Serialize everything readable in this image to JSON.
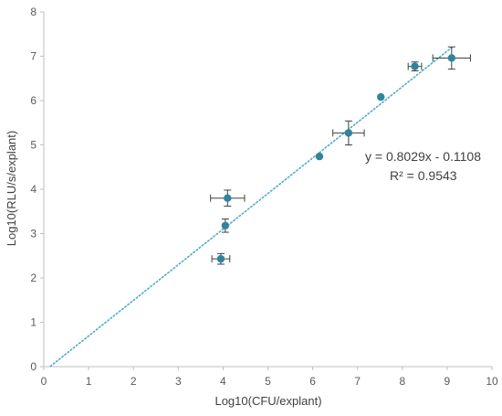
{
  "chart_data": {
    "type": "scatter",
    "title": "",
    "xlabel": "Log10(CFU/explant)",
    "ylabel": "Log10(RLU/s/explant)",
    "xlim": [
      0,
      10
    ],
    "ylim": [
      0,
      8
    ],
    "x_ticks": [
      "0",
      "1",
      "2",
      "3",
      "4",
      "5",
      "6",
      "7",
      "8",
      "9",
      "10"
    ],
    "y_ticks": [
      "0",
      "1",
      "2",
      "3",
      "4",
      "5",
      "6",
      "7",
      "8"
    ],
    "grid": false,
    "legend": "none",
    "marker_color": "#31849B",
    "trendline_color": "#4BACC6",
    "errorbar_color": "#404040",
    "points": [
      {
        "x": 3.95,
        "y": 2.43,
        "xerr": 0.2,
        "yerr": 0.12
      },
      {
        "x": 4.05,
        "y": 3.18,
        "xerr": 0,
        "yerr": 0.15
      },
      {
        "x": 4.1,
        "y": 3.8,
        "xerr": 0.38,
        "yerr": 0.18
      },
      {
        "x": 6.15,
        "y": 4.74,
        "xerr": 0,
        "yerr": 0
      },
      {
        "x": 6.8,
        "y": 5.27,
        "xerr": 0.35,
        "yerr": 0.27
      },
      {
        "x": 7.52,
        "y": 6.08,
        "xerr": 0,
        "yerr": 0
      },
      {
        "x": 8.28,
        "y": 6.77,
        "xerr": 0.15,
        "yerr": 0.1
      },
      {
        "x": 9.1,
        "y": 6.96,
        "xerr": 0.42,
        "yerr": 0.25
      }
    ],
    "trendline": {
      "slope": 0.8029,
      "intercept": -0.1108,
      "x_range": [
        0.15,
        9.1
      ],
      "equation": "y = 0.8029x - 0.1108",
      "r_squared": "R² = 0.9543"
    }
  }
}
